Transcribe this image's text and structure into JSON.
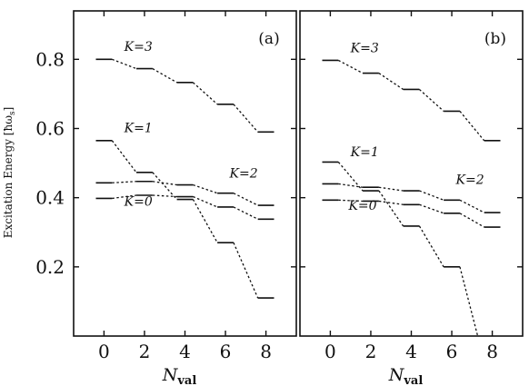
{
  "chart_data": [
    {
      "type": "line",
      "panel_label": "(a)",
      "xlabel": "N",
      "xlabel_sub": "val",
      "ylabel": "Excitation Energy [ħω",
      "ylabel_sub": "s",
      "ylabel_end": "]",
      "xlim": [
        -1.5,
        9.5
      ],
      "ylim": [
        0.0,
        0.94
      ],
      "xticks": [
        "0",
        "2",
        "4",
        "6",
        "8"
      ],
      "yticks": [
        "0.2",
        "0.4",
        "0.6",
        "0.8"
      ],
      "series": [
        {
          "name": "K=3",
          "label_pos": [
            1.0,
            0.825
          ],
          "values": [
            [
              -0.4,
              0.8
            ],
            [
              0.4,
              0.8
            ],
            [
              1.6,
              0.773
            ],
            [
              2.4,
              0.773
            ],
            [
              3.6,
              0.733
            ],
            [
              4.4,
              0.733
            ],
            [
              5.6,
              0.67
            ],
            [
              6.4,
              0.67
            ],
            [
              7.6,
              0.59
            ],
            [
              8.4,
              0.59
            ]
          ]
        },
        {
          "name": "K=1",
          "label_pos": [
            1.0,
            0.59
          ],
          "values": [
            [
              -0.4,
              0.565
            ],
            [
              0.4,
              0.565
            ],
            [
              1.6,
              0.473
            ],
            [
              2.4,
              0.473
            ],
            [
              3.6,
              0.395
            ],
            [
              4.4,
              0.395
            ],
            [
              5.6,
              0.27
            ],
            [
              6.4,
              0.27
            ],
            [
              7.6,
              0.11
            ],
            [
              8.4,
              0.11
            ]
          ]
        },
        {
          "name": "K=2",
          "label_pos": [
            6.2,
            0.458
          ],
          "values": [
            [
              -0.4,
              0.443
            ],
            [
              0.4,
              0.443
            ],
            [
              1.6,
              0.447
            ],
            [
              2.4,
              0.447
            ],
            [
              3.6,
              0.437
            ],
            [
              4.4,
              0.437
            ],
            [
              5.6,
              0.413
            ],
            [
              6.4,
              0.413
            ],
            [
              7.6,
              0.378
            ],
            [
              8.4,
              0.378
            ]
          ]
        },
        {
          "name": "K=0",
          "label_pos": [
            1.0,
            0.377
          ],
          "values": [
            [
              -0.4,
              0.398
            ],
            [
              0.4,
              0.398
            ],
            [
              1.6,
              0.407
            ],
            [
              2.4,
              0.407
            ],
            [
              3.6,
              0.403
            ],
            [
              4.4,
              0.403
            ],
            [
              5.6,
              0.373
            ],
            [
              6.4,
              0.373
            ],
            [
              7.6,
              0.338
            ],
            [
              8.4,
              0.338
            ]
          ]
        }
      ]
    },
    {
      "type": "line",
      "panel_label": "(b)",
      "xlabel": "N",
      "xlabel_sub": "val",
      "xlim": [
        -1.5,
        9.5
      ],
      "ylim": [
        0.0,
        0.94
      ],
      "xticks": [
        "0",
        "2",
        "4",
        "6",
        "8"
      ],
      "series": [
        {
          "name": "K=3",
          "label_pos": [
            1.0,
            0.82
          ],
          "values": [
            [
              -0.4,
              0.797
            ],
            [
              0.4,
              0.797
            ],
            [
              1.6,
              0.76
            ],
            [
              2.4,
              0.76
            ],
            [
              3.6,
              0.713
            ],
            [
              4.4,
              0.713
            ],
            [
              5.6,
              0.65
            ],
            [
              6.4,
              0.65
            ],
            [
              7.6,
              0.565
            ],
            [
              8.4,
              0.565
            ]
          ]
        },
        {
          "name": "K=1",
          "label_pos": [
            1.0,
            0.52
          ],
          "values": [
            [
              -0.4,
              0.503
            ],
            [
              0.4,
              0.503
            ],
            [
              1.6,
              0.42
            ],
            [
              2.4,
              0.42
            ],
            [
              3.6,
              0.318
            ],
            [
              4.4,
              0.318
            ],
            [
              5.6,
              0.2
            ],
            [
              6.4,
              0.2
            ],
            [
              7.5,
              -0.05
            ]
          ]
        },
        {
          "name": "K=2",
          "label_pos": [
            6.2,
            0.44
          ],
          "values": [
            [
              -0.4,
              0.44
            ],
            [
              0.4,
              0.44
            ],
            [
              1.6,
              0.43
            ],
            [
              2.4,
              0.43
            ],
            [
              3.6,
              0.42
            ],
            [
              4.4,
              0.42
            ],
            [
              5.6,
              0.393
            ],
            [
              6.4,
              0.393
            ],
            [
              7.6,
              0.357
            ],
            [
              8.4,
              0.357
            ]
          ]
        },
        {
          "name": "K=0",
          "label_pos": [
            0.9,
            0.365
          ],
          "values": [
            [
              -0.4,
              0.393
            ],
            [
              0.4,
              0.393
            ],
            [
              1.6,
              0.39
            ],
            [
              2.4,
              0.39
            ],
            [
              3.6,
              0.38
            ],
            [
              4.4,
              0.38
            ],
            [
              5.6,
              0.355
            ],
            [
              6.4,
              0.355
            ],
            [
              7.6,
              0.315
            ],
            [
              8.4,
              0.315
            ]
          ]
        }
      ]
    }
  ]
}
